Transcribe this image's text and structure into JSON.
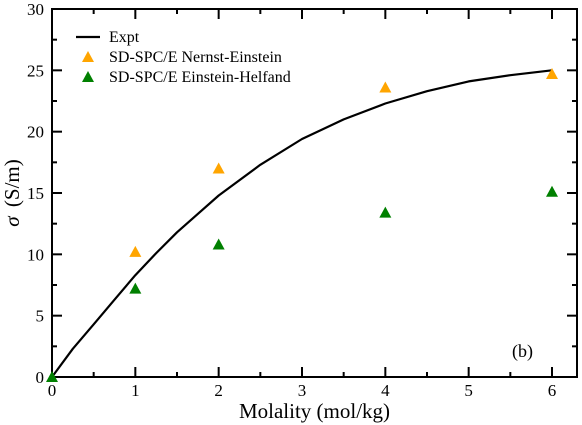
{
  "chart_data": {
    "type": "scatter",
    "title": "",
    "xlabel": "Molality (mol/kg)",
    "ylabel_symbol": "σ",
    "ylabel_unit": "(S/m)",
    "xlim": [
      0,
      6.3
    ],
    "ylim": [
      0,
      30
    ],
    "x_ticks": [
      0,
      1,
      2,
      3,
      4,
      5,
      6
    ],
    "y_ticks": [
      0,
      5,
      10,
      15,
      20,
      25,
      30
    ],
    "grid": false,
    "legend_position": "top-left",
    "annotation": "(b)",
    "series": [
      {
        "name": "Expt",
        "kind": "line",
        "color": "#000000",
        "x": [
          0,
          0.25,
          0.5,
          0.75,
          1,
          1.25,
          1.5,
          1.75,
          2,
          2.5,
          3,
          3.5,
          4,
          4.5,
          5,
          5.5,
          6
        ],
        "y": [
          0,
          2.3,
          4.3,
          6.3,
          8.3,
          10.1,
          11.8,
          13.3,
          14.8,
          17.3,
          19.4,
          21.0,
          22.3,
          23.3,
          24.1,
          24.6,
          25.0
        ]
      },
      {
        "name": "SD-SPC/E Nernst-Einstein",
        "kind": "marker",
        "marker": "triangle",
        "color": "#ffa500",
        "x": [
          1,
          2,
          4,
          6
        ],
        "y": [
          10.2,
          17.0,
          23.6,
          24.7
        ]
      },
      {
        "name": "SD-SPC/E Einstein-Helfand",
        "kind": "marker",
        "marker": "triangle",
        "color": "#008000",
        "x": [
          0,
          1,
          2,
          4,
          6
        ],
        "y": [
          0,
          7.2,
          10.8,
          13.4,
          15.1
        ]
      }
    ]
  }
}
